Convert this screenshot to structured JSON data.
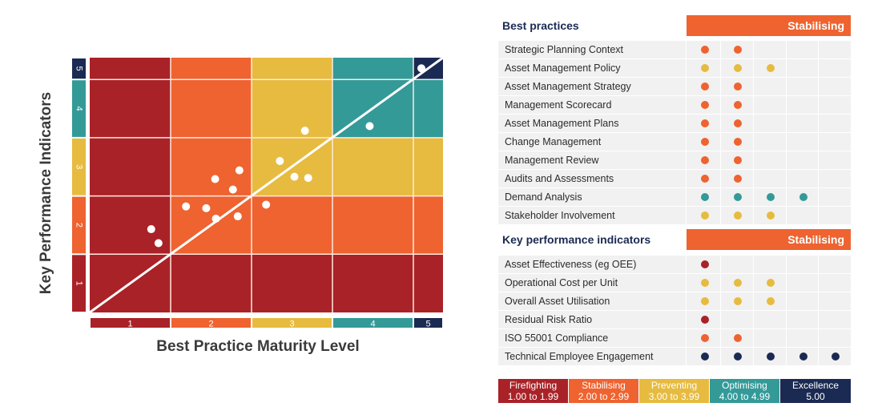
{
  "levels": [
    {
      "level": 1,
      "name": "Firefighting",
      "range": "1.00 to 1.99",
      "color": "#a92227"
    },
    {
      "level": 2,
      "name": "Stabilising",
      "range": "2.00 to 2.99",
      "color": "#ee6330"
    },
    {
      "level": 3,
      "name": "Preventing",
      "range": "3.00 to 3.99",
      "color": "#e6bb3f"
    },
    {
      "level": 4,
      "name": "Optimising",
      "range": "4.00 to 4.99",
      "color": "#339a98"
    },
    {
      "level": 5,
      "name": "Excellence",
      "range": "5.00",
      "color": "#1b2a52"
    }
  ],
  "chart_data": {
    "type": "scatter",
    "title": "",
    "xlabel": "Best Practice Maturity Level",
    "ylabel": "Key Performance Indicators",
    "xlim": [
      1,
      5.37
    ],
    "ylim": [
      1,
      5.37
    ],
    "x_ticks": [
      "1",
      "2",
      "3",
      "4",
      "5"
    ],
    "y_ticks": [
      "1",
      "2",
      "3",
      "4",
      "5"
    ],
    "grid": true,
    "background": "heatmap of maturity levels; each cell colored by the lower of its column and row level",
    "reference_line": {
      "from": [
        1,
        1
      ],
      "to": [
        5.37,
        5.37
      ],
      "label": "diagonal x = y"
    },
    "points": [
      {
        "x": 1.76,
        "y": 2.43
      },
      {
        "x": 1.85,
        "y": 2.19
      },
      {
        "x": 2.19,
        "y": 2.82
      },
      {
        "x": 2.44,
        "y": 2.79
      },
      {
        "x": 2.56,
        "y": 2.61
      },
      {
        "x": 2.83,
        "y": 2.65
      },
      {
        "x": 2.55,
        "y": 3.29
      },
      {
        "x": 2.85,
        "y": 3.44
      },
      {
        "x": 2.77,
        "y": 3.11
      },
      {
        "x": 3.18,
        "y": 2.85
      },
      {
        "x": 3.35,
        "y": 3.6
      },
      {
        "x": 3.53,
        "y": 3.33
      },
      {
        "x": 3.7,
        "y": 3.31
      },
      {
        "x": 3.66,
        "y": 4.12
      },
      {
        "x": 4.46,
        "y": 4.2
      },
      {
        "x": 5.1,
        "y": 5.19
      }
    ]
  },
  "best_practices": {
    "title": "Best practices",
    "band_label": "Stabilising",
    "rows": [
      {
        "label": "Strategic Planning Context",
        "dots": 2,
        "level": 2
      },
      {
        "label": "Asset Management Policy",
        "dots": 3,
        "level": 3
      },
      {
        "label": "Asset Management Strategy",
        "dots": 2,
        "level": 2
      },
      {
        "label": "Management Scorecard",
        "dots": 2,
        "level": 2
      },
      {
        "label": "Asset Management Plans",
        "dots": 2,
        "level": 2
      },
      {
        "label": "Change Management",
        "dots": 2,
        "level": 2
      },
      {
        "label": "Management Review",
        "dots": 2,
        "level": 2
      },
      {
        "label": "Audits and Assessments",
        "dots": 2,
        "level": 2
      },
      {
        "label": "Demand Analysis",
        "dots": 4,
        "level": 4
      },
      {
        "label": "Stakeholder Involvement",
        "dots": 3,
        "level": 3
      }
    ]
  },
  "kpis": {
    "title": "Key performance indicators",
    "band_label": "Stabilising",
    "rows": [
      {
        "label": "Asset Effectiveness (eg OEE)",
        "dots": 1,
        "level": 1
      },
      {
        "label": "Operational Cost per Unit",
        "dots": 3,
        "level": 3
      },
      {
        "label": "Overall Asset Utilisation",
        "dots": 3,
        "level": 3
      },
      {
        "label": "Residual Risk Ratio",
        "dots": 1,
        "level": 1
      },
      {
        "label": "ISO 55001 Compliance",
        "dots": 2,
        "level": 2
      },
      {
        "label": "Technical Employee Engagement",
        "dots": 5,
        "level": 5
      }
    ]
  }
}
